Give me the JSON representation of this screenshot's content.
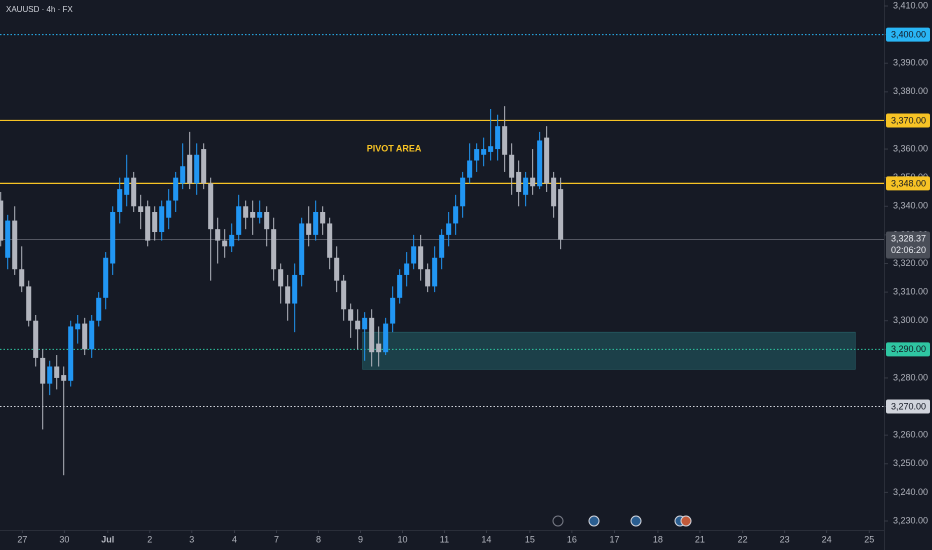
{
  "chart_data": {
    "type": "candlestick",
    "title": "XAUUSD · 4h · FX",
    "up_color": "#2196f3",
    "down_color": "#b2b5be",
    "x": [
      0,
      1,
      2,
      3,
      4,
      5,
      6,
      7,
      8,
      9,
      10,
      11,
      12,
      13,
      14,
      15,
      16,
      17,
      18,
      19,
      20,
      21,
      22,
      23,
      24,
      25,
      26,
      27,
      28,
      29,
      30,
      31,
      32,
      33,
      34,
      35,
      36,
      37,
      38,
      39,
      40,
      41,
      42,
      43,
      44,
      45,
      46,
      47,
      48,
      49,
      50,
      51,
      52,
      53,
      54,
      55,
      56,
      57,
      58,
      59,
      60,
      61,
      62,
      63,
      64,
      65,
      66,
      67,
      68,
      69,
      70,
      71,
      72,
      73,
      74,
      75,
      76,
      77,
      78,
      79,
      80
    ],
    "open": [
      3342,
      3322,
      3335,
      3318,
      3312,
      3300,
      3287,
      3278,
      3284,
      3281,
      3279,
      3297,
      3299,
      3290,
      3300,
      3308,
      3320,
      3338,
      3344,
      3350,
      3340,
      3340,
      3338,
      3331,
      3336,
      3342,
      3348,
      3358,
      3348,
      3360,
      3348,
      3332,
      3328,
      3326,
      3330,
      3340,
      3338,
      3336,
      3338,
      3332,
      3318,
      3312,
      3306,
      3316,
      3334,
      3330,
      3338,
      3334,
      3322,
      3314,
      3304,
      3300,
      3297,
      3301,
      3292,
      3289,
      3299,
      3308,
      3316,
      3320,
      3326,
      3318,
      3312,
      3322,
      3330,
      3334,
      3340,
      3350,
      3356,
      3358,
      3359,
      3360,
      3368,
      3358,
      3352,
      3344,
      3350,
      3347,
      3364,
      3350,
      3346
    ],
    "high": [
      3345,
      3337,
      3340,
      3326,
      3314,
      3302,
      3290,
      3286,
      3288,
      3284,
      3300,
      3302,
      3301,
      3302,
      3310,
      3324,
      3340,
      3350,
      3358,
      3352,
      3344,
      3342,
      3340,
      3342,
      3346,
      3352,
      3362,
      3366,
      3362,
      3362,
      3350,
      3336,
      3332,
      3334,
      3344,
      3342,
      3342,
      3342,
      3340,
      3336,
      3320,
      3316,
      3320,
      3336,
      3340,
      3342,
      3340,
      3336,
      3326,
      3316,
      3306,
      3304,
      3303,
      3304,
      3298,
      3301,
      3312,
      3318,
      3324,
      3330,
      3330,
      3320,
      3326,
      3332,
      3338,
      3344,
      3352,
      3362,
      3362,
      3364,
      3374,
      3372,
      3375,
      3362,
      3356,
      3352,
      3360,
      3366,
      3368,
      3352,
      3350
    ],
    "low": [
      3326,
      3318,
      3316,
      3310,
      3298,
      3284,
      3262,
      3274,
      3276,
      3246,
      3277,
      3292,
      3288,
      3287,
      3298,
      3304,
      3316,
      3334,
      3340,
      3338,
      3332,
      3326,
      3328,
      3328,
      3332,
      3338,
      3346,
      3346,
      3344,
      3346,
      3314,
      3320,
      3322,
      3324,
      3328,
      3332,
      3330,
      3334,
      3326,
      3314,
      3306,
      3300,
      3296,
      3312,
      3326,
      3328,
      3330,
      3318,
      3310,
      3300,
      3294,
      3290,
      3286,
      3284,
      3284,
      3288,
      3296,
      3306,
      3312,
      3318,
      3314,
      3310,
      3310,
      3318,
      3326,
      3330,
      3336,
      3348,
      3352,
      3354,
      3356,
      3356,
      3352,
      3344,
      3340,
      3340,
      3344,
      3346,
      3345,
      3336,
      3325
    ],
    "close": [
      3328,
      3335,
      3318,
      3312,
      3300,
      3287,
      3278,
      3284,
      3280,
      3279,
      3298,
      3299,
      3290,
      3300,
      3308,
      3322,
      3338,
      3346,
      3350,
      3340,
      3338,
      3328,
      3331,
      3340,
      3342,
      3350,
      3354,
      3348,
      3358,
      3348,
      3332,
      3328,
      3326,
      3330,
      3340,
      3336,
      3336,
      3338,
      3332,
      3318,
      3312,
      3306,
      3316,
      3334,
      3330,
      3338,
      3334,
      3322,
      3314,
      3304,
      3300,
      3297,
      3301,
      3289,
      3289,
      3299,
      3308,
      3316,
      3320,
      3326,
      3318,
      3312,
      3322,
      3330,
      3334,
      3340,
      3350,
      3356,
      3360,
      3360,
      3361,
      3368,
      3358,
      3350,
      3345,
      3350,
      3347,
      3363,
      3348,
      3340,
      3328.37
    ],
    "xlim": [
      -0.1,
      126.2
    ],
    "xticks": [
      {
        "value": 3.1,
        "label": "27"
      },
      {
        "value": 9.1,
        "label": "30"
      },
      {
        "value": 15.3,
        "label": "Jul"
      },
      {
        "value": 21.3,
        "label": "2"
      },
      {
        "value": 27.3,
        "label": "3"
      },
      {
        "value": 33.4,
        "label": "4"
      },
      {
        "value": 39.4,
        "label": "7"
      },
      {
        "value": 45.4,
        "label": "8"
      },
      {
        "value": 51.4,
        "label": "9"
      },
      {
        "value": 57.4,
        "label": "10"
      },
      {
        "value": 63.4,
        "label": "11"
      },
      {
        "value": 69.4,
        "label": "14"
      },
      {
        "value": 75.6,
        "label": "15"
      },
      {
        "value": 81.6,
        "label": "16"
      },
      {
        "value": 87.7,
        "label": "17"
      },
      {
        "value": 93.9,
        "label": "18"
      },
      {
        "value": 99.9,
        "label": "21"
      },
      {
        "value": 106,
        "label": "22"
      },
      {
        "value": 112,
        "label": "23"
      },
      {
        "value": 118,
        "label": "24"
      },
      {
        "value": 124.1,
        "label": "25"
      }
    ],
    "ylim": [
      3226.85,
      3412.1
    ],
    "yticks": [
      {
        "value": 3230,
        "label": "3,230.00"
      },
      {
        "value": 3240,
        "label": "3,240.00"
      },
      {
        "value": 3250,
        "label": "3,250.00"
      },
      {
        "value": 3260,
        "label": "3,260.00"
      },
      {
        "value": 3270,
        "label": "3,270.00"
      },
      {
        "value": 3280,
        "label": "3,280.00"
      },
      {
        "value": 3290,
        "label": "3,290.00"
      },
      {
        "value": 3300,
        "label": "3,300.00"
      },
      {
        "value": 3310,
        "label": "3,310.00"
      },
      {
        "value": 3320,
        "label": "3,320.00"
      },
      {
        "value": 3330,
        "label": "3,330.00"
      },
      {
        "value": 3340,
        "label": "3,340.00"
      },
      {
        "value": 3350,
        "label": "3,350.00"
      },
      {
        "value": 3360,
        "label": "3,360.00"
      },
      {
        "value": 3370,
        "label": "3,370.00"
      },
      {
        "value": 3380,
        "label": "3,380.00"
      },
      {
        "value": 3390,
        "label": "3,390.00"
      },
      {
        "value": 3400,
        "label": "3,400.00"
      },
      {
        "value": 3410,
        "label": "3,410.00"
      }
    ],
    "levels": [
      {
        "value": 3400,
        "label": "3,400.00",
        "color": "#29b6f6",
        "style": "dotted"
      },
      {
        "value": 3370,
        "label": "3,370.00",
        "color": "#f7c325",
        "style": "solid"
      },
      {
        "value": 3348,
        "label": "3,348.00",
        "color": "#f7c325",
        "style": "solid"
      },
      {
        "value": 3290,
        "label": "3,290.00",
        "color": "#2fc6a2",
        "style": "dotted"
      },
      {
        "value": 3270,
        "label": "3,270.00",
        "color": "#d1d4dc",
        "style": "dotted"
      }
    ],
    "last_price": {
      "value": 3328.37,
      "label": "3,328.37",
      "countdown": "02:06:20",
      "color": "#4a4e58"
    },
    "zone": {
      "top": 3296,
      "bottom": 3283,
      "x_start": 51.7,
      "x_end": 122.1,
      "color": "#1f4d55"
    },
    "annotations": [
      {
        "text": "PIVOT AREA",
        "x": 52.3,
        "y": 3360,
        "color": "#f7c325"
      }
    ]
  }
}
